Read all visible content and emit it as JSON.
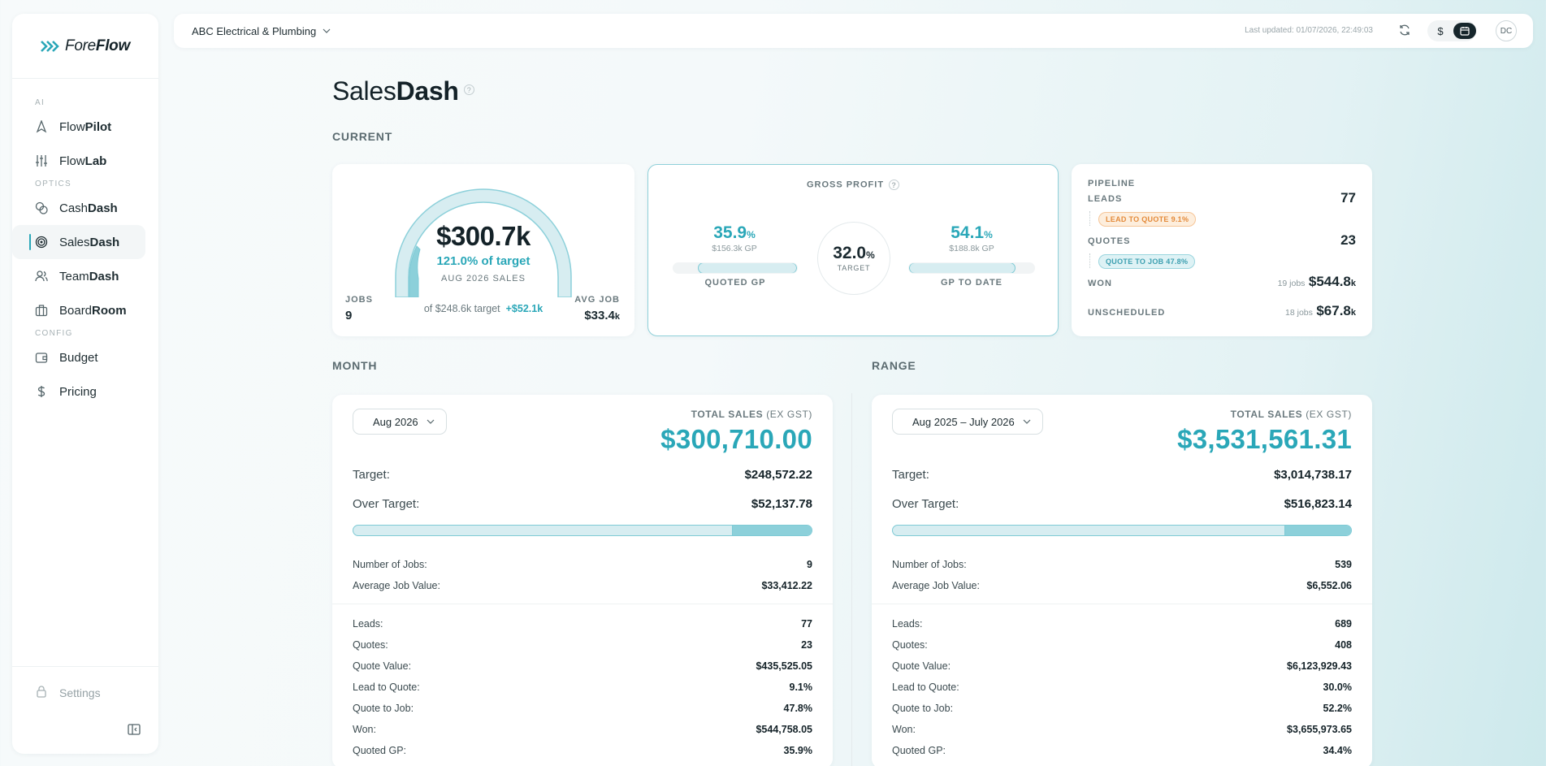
{
  "brand": {
    "name_prefix": "Fore",
    "name_bold": "Flow"
  },
  "sidebar": {
    "sections": [
      {
        "title": "AI",
        "items": [
          {
            "prefix": "Flow",
            "bold": "Pilot",
            "icon": "navigation-icon"
          },
          {
            "prefix": "Flow",
            "bold": "Lab",
            "icon": "sliders-icon"
          }
        ]
      },
      {
        "title": "OPTICS",
        "items": [
          {
            "prefix": "Cash",
            "bold": "Dash",
            "icon": "coins-icon"
          },
          {
            "prefix": "Sales",
            "bold": "Dash",
            "icon": "target-icon",
            "active": true
          },
          {
            "prefix": "Team",
            "bold": "Dash",
            "icon": "users-icon"
          },
          {
            "prefix": "Board",
            "bold": "Room",
            "icon": "briefcase-icon"
          }
        ]
      },
      {
        "title": "CONFIG",
        "items": [
          {
            "prefix": "Budget",
            "bold": "",
            "icon": "wallet-icon"
          },
          {
            "prefix": "Pricing",
            "bold": "",
            "icon": "dollar-icon"
          }
        ]
      }
    ],
    "settings": "Settings"
  },
  "topbar": {
    "org": "ABC Electrical & Plumbing",
    "last_updated": "Last updated: 01/07/2026, 22:49:03",
    "currency_symbol": "$",
    "avatar": "DC"
  },
  "page": {
    "title_prefix": "Sales",
    "title_bold": "Dash",
    "help": "?",
    "section_current": "CURRENT",
    "section_month": "MONTH",
    "section_range": "RANGE"
  },
  "gauge": {
    "value": "$300.7k",
    "pct_of_target": "121.0% of target",
    "period": "AUG 2026 SALES",
    "jobs_label": "JOBS",
    "jobs": "9",
    "avg_label": "AVG JOB",
    "avg_value": "$33.4",
    "avg_suffix": "k",
    "target_text": "of $248.6k target",
    "over": "+$52.1k",
    "fraction": 1.0
  },
  "gross_profit": {
    "title": "GROSS PROFIT",
    "help": "?",
    "quoted": {
      "pct": "35.9",
      "sym": "%",
      "sub": "$156.3k GP",
      "label": "QUOTED GP",
      "fill": 0.8
    },
    "target": {
      "pct": "32.0",
      "sym": "%",
      "label": "TARGET"
    },
    "to_date": {
      "pct": "54.1",
      "sym": "%",
      "sub": "$188.8k GP",
      "label": "GP TO DATE",
      "fill": 0.85
    }
  },
  "pipeline": {
    "title": "PIPELINE",
    "leads_label": "LEADS",
    "leads": "77",
    "lead_to_quote": "LEAD TO QUOTE",
    "lead_to_quote_pct": "9.1%",
    "quotes_label": "QUOTES",
    "quotes": "23",
    "quote_to_job": "QUOTE TO JOB",
    "quote_to_job_pct": "47.8%",
    "won_label": "WON",
    "won_jobs": "19 jobs",
    "won_value": "$544.8",
    "won_suffix": "k",
    "unsched_label": "UNSCHEDULED",
    "unsched_jobs": "18 jobs",
    "unsched_value": "$67.8",
    "unsched_suffix": "k"
  },
  "month": {
    "selector": "Aug 2026",
    "total_label": "TOTAL SALES",
    "total_note": "(EX GST)",
    "total": "$300,710.00",
    "target_label": "Target:",
    "target": "$248,572.22",
    "over_label": "Over Target:",
    "over": "$52,137.78",
    "progress_over_fraction": 0.173,
    "rows": [
      {
        "k": "Number of Jobs:",
        "v": "9"
      },
      {
        "k": "Average Job Value:",
        "v": "$33,412.22"
      }
    ],
    "rows2": [
      {
        "k": "Leads:",
        "v": "77"
      },
      {
        "k": "Quotes:",
        "v": "23"
      },
      {
        "k": "Quote Value:",
        "v": "$435,525.05"
      },
      {
        "k": "Lead to Quote:",
        "v": "9.1%"
      },
      {
        "k": "Quote to Job:",
        "v": "47.8%"
      },
      {
        "k": "Won:",
        "v": "$544,758.05"
      },
      {
        "k": "Quoted GP:",
        "v": "35.9%",
        "teal": true
      }
    ]
  },
  "range": {
    "selector": "Aug 2025 – July 2026",
    "total_label": "TOTAL SALES",
    "total_note": "(EX GST)",
    "total": "$3,531,561.31",
    "target_label": "Target:",
    "target": "$3,014,738.17",
    "over_label": "Over Target:",
    "over": "$516,823.14",
    "progress_over_fraction": 0.146,
    "rows": [
      {
        "k": "Number of Jobs:",
        "v": "539"
      },
      {
        "k": "Average Job Value:",
        "v": "$6,552.06"
      }
    ],
    "rows2": [
      {
        "k": "Leads:",
        "v": "689"
      },
      {
        "k": "Quotes:",
        "v": "408"
      },
      {
        "k": "Quote Value:",
        "v": "$6,123,929.43"
      },
      {
        "k": "Lead to Quote:",
        "v": "30.0%"
      },
      {
        "k": "Quote to Job:",
        "v": "52.2%"
      },
      {
        "k": "Won:",
        "v": "$3,655,973.65"
      },
      {
        "k": "Quoted GP:",
        "v": "34.4%",
        "teal": true
      }
    ]
  },
  "colors": {
    "accent": "#2aa7b8",
    "lead_badge": "#f6a35b",
    "quote_badge": "#58b9c8"
  }
}
